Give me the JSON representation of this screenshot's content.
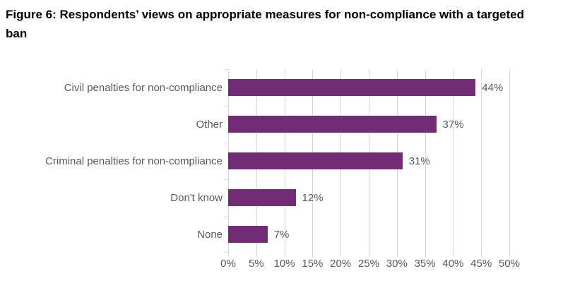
{
  "figure": {
    "title": "Figure 6: Respondents’ views on appropriate measures for non-compliance with a targeted ban"
  },
  "chart_data": {
    "type": "bar",
    "orientation": "horizontal",
    "title": "Figure 6: Respondents’ views on appropriate measures for non-compliance with a targeted ban",
    "categories": [
      "Civil penalties for non-compliance",
      "Other",
      "Criminal penalties for non-compliance",
      "Don't know",
      "None"
    ],
    "values": [
      44,
      37,
      31,
      12,
      7
    ],
    "value_labels": [
      "44%",
      "37%",
      "31%",
      "12%",
      "7%"
    ],
    "xlabel": "",
    "ylabel": "",
    "x_axis": {
      "min": 0,
      "max": 50,
      "step": 5,
      "tick_labels": [
        "0%",
        "5%",
        "10%",
        "15%",
        "20%",
        "25%",
        "30%",
        "35%",
        "40%",
        "45%",
        "50%"
      ]
    },
    "grid": true,
    "legend": false,
    "colors": {
      "bar": "#722b75",
      "label_text": "#595959",
      "gridline": "#d9d9d9",
      "title_text": "#000000"
    }
  }
}
